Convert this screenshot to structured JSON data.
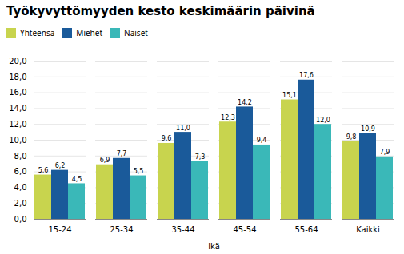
{
  "chart_data": {
    "type": "bar",
    "title": "Työkyvyttömyyden kesto keskimäärin päivinä",
    "xlabel": "Ikä",
    "categories": [
      "15-24",
      "25-34",
      "35-44",
      "45-54",
      "55-64",
      "Kaikki"
    ],
    "series": [
      {
        "name": "Yhteensä",
        "color": "#c8d44e",
        "values": [
          5.6,
          6.9,
          9.6,
          12.3,
          15.1,
          9.8
        ],
        "value_labels": [
          "5,6",
          "6,9",
          "9,6",
          "12,3",
          "15,1",
          "9,8"
        ]
      },
      {
        "name": "Miehet",
        "color": "#1a5a9a",
        "values": [
          6.2,
          7.7,
          11.0,
          14.2,
          17.6,
          10.9
        ],
        "value_labels": [
          "6,2",
          "7,7",
          "11,0",
          "14,2",
          "17,6",
          "10,9"
        ]
      },
      {
        "name": "Naiset",
        "color": "#3ab8b8",
        "values": [
          4.5,
          5.5,
          7.3,
          9.4,
          12.0,
          7.9
        ],
        "value_labels": [
          "4,5",
          "5,5",
          "7,3",
          "9,4",
          "12,0",
          "7,9"
        ]
      }
    ],
    "ylim": [
      0,
      20.0
    ],
    "yticks": [
      {
        "value": 0,
        "label": "0,0"
      },
      {
        "value": 2,
        "label": "2,0"
      },
      {
        "value": 4,
        "label": "4,0"
      },
      {
        "value": 6,
        "label": "6,0"
      },
      {
        "value": 8,
        "label": "8,0"
      },
      {
        "value": 10,
        "label": "10,0"
      },
      {
        "value": 12,
        "label": "12,0"
      },
      {
        "value": 14,
        "label": "14,0"
      },
      {
        "value": 16,
        "label": "16,0"
      },
      {
        "value": 18,
        "label": "18,0"
      },
      {
        "value": 20,
        "label": "20,0"
      }
    ],
    "grid": true,
    "legend": "upper left",
    "data_labels": true
  }
}
